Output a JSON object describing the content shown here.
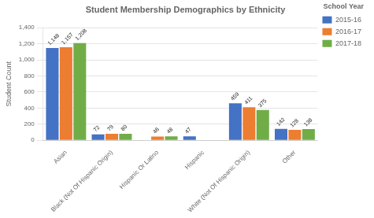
{
  "chart_data": {
    "type": "bar",
    "title": "Student Membership Demographics by Ethnicity",
    "ylabel": "Student Count",
    "legend_title": "School Year",
    "categories": [
      "Asian",
      "Black (Not Of Hispanic Origin)",
      "Hispanic Or Latino",
      "Hispanic",
      "White (Not Of Hispanic Origin)",
      "Other"
    ],
    "series": [
      {
        "name": "2015-16",
        "color": "#4472C4",
        "values": [
          1148,
          72,
          0,
          47,
          459,
          142
        ],
        "value_labels": [
          "1,148",
          "72",
          null,
          "47",
          "459",
          "142"
        ]
      },
      {
        "name": "2016-17",
        "color": "#ED7D31",
        "values": [
          1157,
          79,
          46,
          0,
          411,
          128
        ],
        "value_labels": [
          "1,157",
          "79",
          "46",
          null,
          "411",
          "128"
        ]
      },
      {
        "name": "2017-18",
        "color": "#70AD47",
        "values": [
          1208,
          80,
          48,
          0,
          375,
          138
        ],
        "value_labels": [
          "1,208",
          "80",
          "48",
          null,
          "375",
          "138"
        ]
      }
    ],
    "ylim": [
      0,
      1400
    ],
    "yticks": [
      0,
      200,
      400,
      600,
      800,
      {
        "value": 1000,
        "label": "1,000"
      },
      {
        "value": 1200,
        "label": "1,200"
      },
      {
        "value": 1400,
        "label": "1,400"
      }
    ],
    "grid": true,
    "legend": "right",
    "data_labels": true
  }
}
